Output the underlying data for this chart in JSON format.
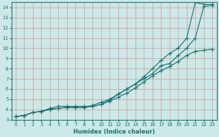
{
  "xlabel": "Humidex (Indice chaleur)",
  "xlim": [
    -0.5,
    23.5
  ],
  "ylim": [
    3,
    14.5
  ],
  "xticks": [
    0,
    1,
    2,
    3,
    4,
    5,
    6,
    7,
    8,
    9,
    10,
    11,
    12,
    13,
    14,
    15,
    16,
    17,
    18,
    19,
    20,
    21,
    22,
    23
  ],
  "yticks": [
    3,
    4,
    5,
    6,
    7,
    8,
    9,
    10,
    11,
    12,
    13,
    14
  ],
  "bg_color": "#cce8e8",
  "grid_color": "#d4a0a0",
  "line_color": "#1a7070",
  "line1_x": [
    0,
    1,
    2,
    3,
    4,
    5,
    6,
    7,
    8,
    9,
    10,
    11,
    12,
    13,
    14,
    15,
    16,
    17,
    18,
    19,
    20,
    21,
    22,
    23
  ],
  "line1_y": [
    3.3,
    3.4,
    3.7,
    3.8,
    4.1,
    4.3,
    4.3,
    4.3,
    4.3,
    4.3,
    4.5,
    4.9,
    5.5,
    6.0,
    6.5,
    7.2,
    8.0,
    8.8,
    9.5,
    10.0,
    11.0,
    14.5,
    14.3,
    14.3
  ],
  "line2_x": [
    0,
    1,
    2,
    3,
    4,
    5,
    6,
    7,
    8,
    9,
    10,
    11,
    12,
    13,
    14,
    15,
    16,
    17,
    18,
    19,
    20,
    21,
    22,
    23
  ],
  "line2_y": [
    3.3,
    3.4,
    3.7,
    3.8,
    4.0,
    4.1,
    4.2,
    4.2,
    4.2,
    4.4,
    4.7,
    5.0,
    5.5,
    6.0,
    6.5,
    7.0,
    7.5,
    8.3,
    8.5,
    9.3,
    10.0,
    11.0,
    14.1,
    14.2
  ],
  "line3_x": [
    0,
    1,
    2,
    3,
    4,
    5,
    6,
    7,
    8,
    9,
    10,
    11,
    12,
    13,
    14,
    15,
    16,
    17,
    18,
    19,
    20,
    21,
    22,
    23
  ],
  "line3_y": [
    3.3,
    3.4,
    3.7,
    3.8,
    4.0,
    4.1,
    4.2,
    4.2,
    4.2,
    4.3,
    4.5,
    4.8,
    5.2,
    5.6,
    6.1,
    6.7,
    7.3,
    7.8,
    8.2,
    8.7,
    9.3,
    9.7,
    9.8,
    9.9
  ]
}
